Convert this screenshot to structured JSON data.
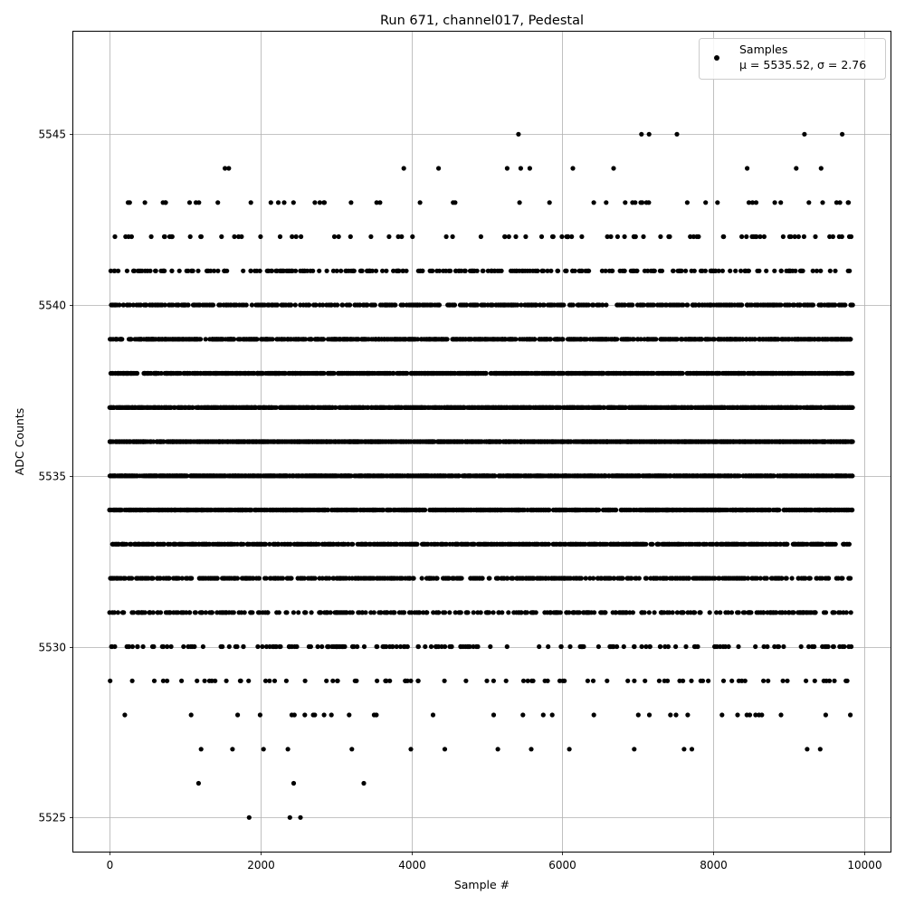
{
  "chart_data": {
    "type": "scatter",
    "title": "Run 671, channel017, Pedestal",
    "xlabel": "Sample #",
    "ylabel": "ADC Counts",
    "xlim": [
      -480,
      10350
    ],
    "ylim": [
      5524,
      5548
    ],
    "xticks": [
      0,
      2000,
      4000,
      6000,
      8000,
      10000
    ],
    "yticks": [
      5525,
      5530,
      5535,
      5540,
      5545
    ],
    "xtick_labels": [
      "0",
      "2000",
      "4000",
      "6000",
      "8000",
      "10000"
    ],
    "ytick_labels": [
      "5525",
      "5530",
      "5535",
      "5540",
      "5545"
    ],
    "grid": true,
    "legend": {
      "placement": "top-right",
      "entries": [
        {
          "label": "Samples",
          "stats": "μ = 5535.52, σ = 2.76"
        }
      ]
    },
    "marker_color": "#000000",
    "series": [
      {
        "name": "Samples",
        "n_points": 9850,
        "mean": 5535.52,
        "sigma": 2.76,
        "level_fraction": {
          "5525": 0.0004,
          "5526": 0.0003,
          "5527": 0.0015,
          "5528": 0.0035,
          "5529": 0.0075,
          "5530": 0.017,
          "5531": 0.033,
          "5532": 0.052,
          "5533": 0.083,
          "5534": 0.112,
          "5535": 0.135,
          "5536": 0.142,
          "5537": 0.132,
          "5538": 0.108,
          "5539": 0.079,
          "5540": 0.052,
          "5541": 0.028,
          "5542": 0.0105,
          "5543": 0.005,
          "5544": 0.0016,
          "5545": 0.0007
        },
        "notable_points": [
          {
            "x": 1850,
            "y": 5525
          },
          {
            "x": 2390,
            "y": 5525
          },
          {
            "x": 2530,
            "y": 5525
          },
          {
            "x": 1180,
            "y": 5526
          },
          {
            "x": 2440,
            "y": 5526
          },
          {
            "x": 3370,
            "y": 5526
          },
          {
            "x": 5420,
            "y": 5545
          },
          {
            "x": 7050,
            "y": 5545
          },
          {
            "x": 7150,
            "y": 5545
          },
          {
            "x": 7520,
            "y": 5545
          },
          {
            "x": 9210,
            "y": 5545
          },
          {
            "x": 9710,
            "y": 5545
          },
          {
            "x": 1530,
            "y": 5544
          },
          {
            "x": 1580,
            "y": 5544
          },
          {
            "x": 3900,
            "y": 5544
          },
          {
            "x": 4360,
            "y": 5544
          },
          {
            "x": 5270,
            "y": 5544
          },
          {
            "x": 5450,
            "y": 5544
          },
          {
            "x": 5570,
            "y": 5544
          },
          {
            "x": 6140,
            "y": 5544
          },
          {
            "x": 6680,
            "y": 5544
          },
          {
            "x": 8450,
            "y": 5544
          },
          {
            "x": 9100,
            "y": 5544
          },
          {
            "x": 9430,
            "y": 5544
          }
        ]
      }
    ]
  }
}
